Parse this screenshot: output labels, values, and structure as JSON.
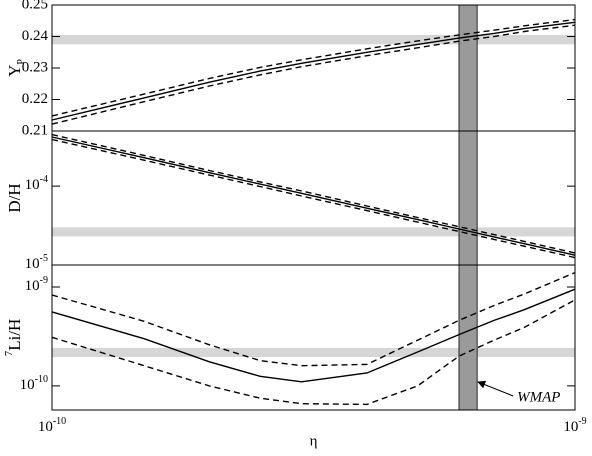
{
  "chart_data": [
    {
      "type": "line",
      "ylabel": "Y",
      "ylabel_subscript": "P",
      "x": [
        1e-10,
        1.5e-10,
        2e-10,
        2.5e-10,
        3e-10,
        4e-10,
        5e-10,
        6e-10,
        7e-10,
        8e-10,
        1e-09
      ],
      "xlim": [
        1e-10,
        1e-09
      ],
      "xscale": "log",
      "ylim": [
        0.21,
        0.25
      ],
      "yticks": [
        0.21,
        0.22,
        0.23,
        0.24,
        0.25
      ],
      "yscale": "linear",
      "hband": [
        0.2375,
        0.2405
      ],
      "hband_color": "#d6d6d6",
      "vband": [
        6e-10,
        6.5e-10
      ],
      "vband_color": "#9a9a9a",
      "series": [
        {
          "color": "#000000",
          "dashed": false,
          "values": [
            0.2135,
            0.2205,
            0.2255,
            0.229,
            0.2315,
            0.235,
            0.2375,
            0.2395,
            0.241,
            0.2425,
            0.2445
          ]
        },
        {
          "color": "#000000",
          "dashed": true,
          "values": [
            0.2148,
            0.2217,
            0.2267,
            0.2302,
            0.2326,
            0.2361,
            0.2386,
            0.2405,
            0.242,
            0.2434,
            0.2454
          ]
        },
        {
          "color": "#000000",
          "dashed": true,
          "values": [
            0.2122,
            0.2193,
            0.2243,
            0.2278,
            0.2304,
            0.2339,
            0.2364,
            0.2385,
            0.24,
            0.2416,
            0.2436
          ]
        }
      ]
    },
    {
      "type": "line",
      "ylabel": "D/H",
      "x": [
        1e-10,
        1.5e-10,
        2e-10,
        2.5e-10,
        3e-10,
        4e-10,
        5e-10,
        6e-10,
        7e-10,
        8e-10,
        1e-09
      ],
      "xlim": [
        1e-10,
        1e-09
      ],
      "xscale": "log",
      "ylim": [
        1e-05,
        0.0005
      ],
      "yscale": "log",
      "yticks": [
        {
          "value": 1e-05,
          "label": "10",
          "exponent": "-5"
        },
        {
          "value": 0.0001,
          "label": "10",
          "exponent": "-4"
        }
      ],
      "hband": [
        2.3e-05,
        3e-05
      ],
      "hband_color": "#d6d6d6",
      "vband": [
        6e-10,
        6.5e-10
      ],
      "vband_color": "#9a9a9a",
      "series": [
        {
          "color": "#000000",
          "dashed": false,
          "values": [
            0.00042,
            0.000229,
            0.000148,
            0.000106,
            8.1e-05,
            5.25e-05,
            3.76e-05,
            2.86e-05,
            2.27e-05,
            1.86e-05,
            1.33e-05
          ]
        },
        {
          "color": "#000000",
          "dashed": true,
          "values": [
            0.00045,
            0.000245,
            0.000158,
            0.000113,
            8.7e-05,
            5.6e-05,
            4e-05,
            3.06e-05,
            2.43e-05,
            1.99e-05,
            1.42e-05
          ]
        },
        {
          "color": "#000000",
          "dashed": true,
          "values": [
            0.00039,
            0.000213,
            0.000138,
            9.9e-05,
            7.5e-05,
            4.9e-05,
            3.5e-05,
            2.66e-05,
            2.11e-05,
            1.73e-05,
            1.24e-05
          ]
        }
      ]
    },
    {
      "type": "line",
      "ylabel": "Li/H",
      "ylabel_superscript": "7",
      "xlabel": "η",
      "x": [
        1e-10,
        1.5e-10,
        2e-10,
        2.5e-10,
        3e-10,
        4e-10,
        5e-10,
        6e-10,
        7e-10,
        8e-10,
        1e-09
      ],
      "xlim": [
        1e-10,
        1e-09
      ],
      "xscale": "log",
      "xticks": [
        {
          "value": 1e-10,
          "label": "10",
          "exponent": "-10"
        },
        {
          "value": 1e-09,
          "label": "10",
          "exponent": "-9"
        }
      ],
      "ylim": [
        5.7e-11,
        1.67e-09
      ],
      "yscale": "log",
      "yticks": [
        {
          "value": 1e-10,
          "label": "10",
          "exponent": "-10"
        },
        {
          "value": 1e-09,
          "label": "10",
          "exponent": "-9"
        }
      ],
      "hband": [
        1.96e-10,
        2.42e-10
      ],
      "hband_color": "#d6d6d6",
      "vband": [
        6e-10,
        6.5e-10
      ],
      "vband_color": "#9a9a9a",
      "annotation": "WMAP",
      "series": [
        {
          "color": "#000000",
          "dashed": false,
          "values": [
            5.6e-10,
            3e-10,
            1.75e-10,
            1.25e-10,
            1.1e-10,
            1.35e-10,
            2.2e-10,
            3.3e-10,
            4.6e-10,
            5.9e-10,
            9.5e-10
          ]
        },
        {
          "color": "#000000",
          "dashed": true,
          "values": [
            8.3e-10,
            4.5e-10,
            2.6e-10,
            1.8e-10,
            1.6e-10,
            1.65e-10,
            2.9e-10,
            4.6e-10,
            6.5e-10,
            8.5e-10,
            1.4e-09
          ]
        },
        {
          "color": "#000000",
          "dashed": true,
          "values": [
            3.1e-10,
            1.6e-10,
            1e-10,
            7.5e-11,
            6.6e-11,
            6.5e-11,
            1e-10,
            2e-10,
            2.9e-10,
            3.9e-10,
            7.4e-10
          ]
        }
      ]
    }
  ]
}
